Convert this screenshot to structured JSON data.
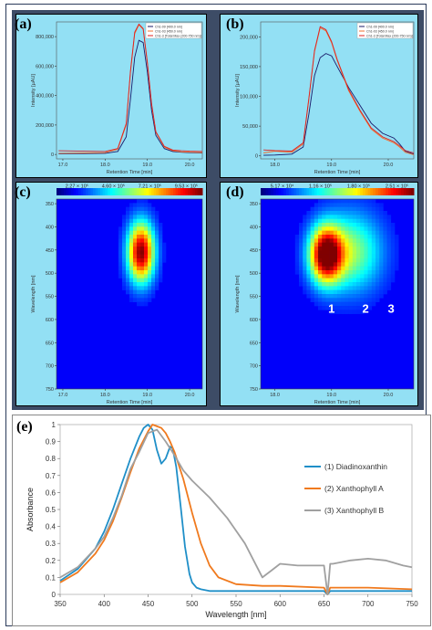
{
  "panels": {
    "a": {
      "label": "(a)",
      "ylabel": "Intensity [µAU]",
      "xlabel": "Retention Time [min]",
      "yticks": [
        "0",
        "200,000",
        "400,000",
        "600,000",
        "800,000"
      ],
      "xticks": [
        "17.0",
        "18.0",
        "19.0",
        "20.0"
      ],
      "legend": [
        "Ch1-09 [400.0 nm]",
        "Ch1-03 [450.0 nm]",
        "Ch1-3 [Total Max (200-750 nm)]"
      ]
    },
    "b": {
      "label": "(b)",
      "ylabel": "Intensity [µAU]",
      "xlabel": "Retention Time [min]",
      "yticks": [
        "0",
        "50,000",
        "100,000",
        "150,000",
        "200,000"
      ],
      "xticks": [
        "18.0",
        "19.0",
        "20.0"
      ],
      "legend": [
        "Ch1-09 [400.0 nm]",
        "Ch1-03 [450.0 nm]",
        "Ch1-3 [Total Max (200-750 nm)]"
      ]
    },
    "c": {
      "label": "(c)",
      "ylabel": "Wavelength [nm]",
      "xlabel": "Retention Time [min]",
      "scale": [
        "2.27 × 10⁵",
        "4.60 × 10⁵",
        "7.21 × 10⁵",
        "9.53 × 10⁵"
      ],
      "yticks": [
        "350",
        "400",
        "450",
        "500",
        "550",
        "600",
        "650",
        "700",
        "750"
      ],
      "xticks": [
        "17.0",
        "18.0",
        "19.0",
        "20.0"
      ]
    },
    "d": {
      "label": "(d)",
      "ylabel": "Wavelength [nm]",
      "xlabel": "Retention Time [min]",
      "scale": [
        "5.17 × 10⁴",
        "1.16 × 10⁵",
        "1.80 × 10⁵",
        "2.51 × 10⁵"
      ],
      "yticks": [
        "350",
        "400",
        "450",
        "500",
        "550",
        "600",
        "650",
        "700",
        "750"
      ],
      "xticks": [
        "18.0",
        "19.0",
        "20.0"
      ],
      "peak_labels": [
        "1",
        "2",
        "3"
      ]
    }
  },
  "colors": {
    "diadinoxanthin": "#1f8fc8",
    "xanthophyll_a": "#f07a1e",
    "xanthophyll_b": "#a0a0a0",
    "hplc_black": "#1a1a6a",
    "hplc_orange": "#f07030",
    "hplc_red": "#e02020",
    "panel_bg": "#93e0f4"
  },
  "chart_data": [
    {
      "panel": "a",
      "type": "line",
      "xlabel": "Retention Time [min]",
      "ylabel": "Intensity [µAU]",
      "xlim": [
        16.85,
        20.3
      ],
      "ylim": [
        -30000,
        900000
      ],
      "series": [
        {
          "name": "Ch1-09 [400.0 nm]",
          "x": [
            16.9,
            17.5,
            18.0,
            18.3,
            18.5,
            18.6,
            18.7,
            18.8,
            18.9,
            19.0,
            19.1,
            19.2,
            19.4,
            19.6,
            19.8,
            20.0,
            20.3
          ],
          "values": [
            5000,
            6000,
            8000,
            20000,
            120000,
            380000,
            660000,
            775000,
            760000,
            560000,
            300000,
            130000,
            40000,
            20000,
            15000,
            12000,
            10000
          ]
        },
        {
          "name": "Ch1-03 [450.0 nm]",
          "x": [
            16.9,
            17.5,
            18.0,
            18.3,
            18.5,
            18.6,
            18.7,
            18.8,
            18.9,
            19.0,
            19.1,
            19.2,
            19.4,
            19.6,
            19.8,
            20.0,
            20.3
          ],
          "values": [
            8000,
            10000,
            12000,
            35000,
            200000,
            560000,
            820000,
            880000,
            850000,
            620000,
            340000,
            150000,
            50000,
            25000,
            18000,
            15000,
            12000
          ]
        },
        {
          "name": "Ch1-3 [Total Max (200-750 nm)]",
          "x": [
            16.9,
            17.5,
            18.0,
            18.3,
            18.5,
            18.6,
            18.7,
            18.8,
            18.9,
            19.0,
            19.1,
            19.2,
            19.4,
            19.6,
            19.8,
            20.0,
            20.3
          ],
          "values": [
            25000,
            22000,
            20000,
            40000,
            210000,
            570000,
            830000,
            885000,
            855000,
            625000,
            345000,
            155000,
            55000,
            30000,
            25000,
            22000,
            20000
          ]
        }
      ]
    },
    {
      "panel": "b",
      "type": "line",
      "xlabel": "Retention Time [min]",
      "ylabel": "Intensity [µAU]",
      "xlim": [
        17.75,
        20.45
      ],
      "ylim": [
        -5000,
        225000
      ],
      "series": [
        {
          "name": "Ch1-09 [400.0 nm]",
          "x": [
            17.8,
            18.0,
            18.3,
            18.5,
            18.6,
            18.7,
            18.8,
            18.9,
            19.0,
            19.1,
            19.3,
            19.5,
            19.7,
            19.9,
            20.1,
            20.2,
            20.3,
            20.45
          ],
          "values": [
            1000,
            1500,
            3000,
            15000,
            70000,
            135000,
            165000,
            172000,
            168000,
            150000,
            115000,
            85000,
            55000,
            38000,
            30000,
            20000,
            8000,
            3000
          ]
        },
        {
          "name": "Ch1-03 [450.0 nm]",
          "x": [
            17.8,
            18.0,
            18.3,
            18.5,
            18.6,
            18.7,
            18.8,
            18.9,
            19.0,
            19.1,
            19.3,
            19.5,
            19.7,
            19.9,
            20.1,
            20.2,
            20.3,
            20.45
          ],
          "values": [
            5000,
            8000,
            6000,
            20000,
            95000,
            175000,
            215000,
            210000,
            190000,
            160000,
            110000,
            75000,
            45000,
            30000,
            22000,
            15000,
            6000,
            2000
          ]
        },
        {
          "name": "Ch1-3 [Total Max (200-750 nm)]",
          "x": [
            17.8,
            18.0,
            18.3,
            18.5,
            18.6,
            18.7,
            18.8,
            18.9,
            19.0,
            19.1,
            19.3,
            19.5,
            19.7,
            19.9,
            20.1,
            20.2,
            20.3,
            20.45
          ],
          "values": [
            10000,
            9000,
            8000,
            22000,
            97000,
            177000,
            217000,
            212000,
            192000,
            162000,
            112000,
            77000,
            47000,
            32000,
            24000,
            17000,
            9000,
            5000
          ]
        }
      ]
    },
    {
      "panel": "c",
      "type": "heatmap",
      "xlabel": "Retention Time [min]",
      "ylabel": "Wavelength [nm]",
      "xlim": [
        16.85,
        20.3
      ],
      "ylim": [
        750,
        340
      ],
      "hotspots": [
        {
          "x": 18.85,
          "y": 455,
          "sx": 0.22,
          "sy": 45,
          "amp": 1.0
        }
      ]
    },
    {
      "panel": "d",
      "type": "heatmap",
      "xlabel": "Retention Time [min]",
      "ylabel": "Wavelength [nm]",
      "xlim": [
        17.75,
        20.45
      ],
      "ylim": [
        750,
        340
      ],
      "hotspots": [
        {
          "x": 18.9,
          "y": 460,
          "sx": 0.2,
          "sy": 42,
          "amp": 1.0
        },
        {
          "x": 19.35,
          "y": 455,
          "sx": 0.38,
          "sy": 60,
          "amp": 0.45
        }
      ],
      "peak_label_x": [
        19.0,
        19.6,
        20.05
      ],
      "peak_label_y": 585
    },
    {
      "panel": "e",
      "type": "line",
      "xlabel": "Wavelength [nm]",
      "ylabel": "Absorbance",
      "xlim": [
        350,
        750
      ],
      "ylim": [
        0,
        1
      ],
      "xticks": [
        350,
        400,
        450,
        500,
        550,
        600,
        650,
        700,
        750
      ],
      "yticks": [
        0,
        0.1,
        0.2,
        0.3,
        0.4,
        0.5,
        0.6,
        0.7,
        0.8,
        0.9,
        1
      ],
      "legend_position": "right",
      "series": [
        {
          "name": "(1) Diadinoxanthin",
          "x": [
            350,
            370,
            390,
            400,
            410,
            420,
            430,
            440,
            445,
            450,
            455,
            460,
            465,
            470,
            475,
            478,
            482,
            487,
            492,
            497,
            500,
            505,
            510,
            520,
            550,
            600,
            650,
            654,
            657,
            660,
            700,
            750
          ],
          "values": [
            0.08,
            0.15,
            0.27,
            0.37,
            0.5,
            0.65,
            0.8,
            0.93,
            0.98,
            1.0,
            0.97,
            0.85,
            0.77,
            0.8,
            0.87,
            0.86,
            0.75,
            0.52,
            0.28,
            0.12,
            0.07,
            0.04,
            0.03,
            0.02,
            0.02,
            0.02,
            0.02,
            0.0,
            0.02,
            0.02,
            0.02,
            0.02
          ]
        },
        {
          "name": "(2) Xanthophyll A",
          "x": [
            350,
            370,
            390,
            400,
            410,
            420,
            430,
            440,
            450,
            455,
            460,
            465,
            470,
            475,
            480,
            490,
            500,
            510,
            520,
            530,
            550,
            580,
            600,
            650,
            654,
            657,
            660,
            700,
            750
          ],
          "values": [
            0.07,
            0.13,
            0.24,
            0.32,
            0.43,
            0.57,
            0.72,
            0.86,
            0.96,
            1.0,
            0.99,
            0.98,
            0.95,
            0.9,
            0.84,
            0.68,
            0.48,
            0.3,
            0.17,
            0.1,
            0.06,
            0.05,
            0.05,
            0.04,
            0.0,
            0.04,
            0.04,
            0.04,
            0.03
          ]
        },
        {
          "name": "(3) Xanthophyll B",
          "x": [
            350,
            370,
            390,
            400,
            410,
            420,
            430,
            440,
            450,
            460,
            470,
            480,
            490,
            500,
            520,
            540,
            560,
            580,
            590,
            600,
            620,
            640,
            650,
            654,
            657,
            660,
            680,
            700,
            720,
            740,
            750
          ],
          "values": [
            0.1,
            0.16,
            0.27,
            0.34,
            0.45,
            0.58,
            0.74,
            0.84,
            0.95,
            0.97,
            0.9,
            0.82,
            0.73,
            0.67,
            0.57,
            0.45,
            0.3,
            0.1,
            0.14,
            0.18,
            0.17,
            0.17,
            0.17,
            0.0,
            0.18,
            0.18,
            0.2,
            0.21,
            0.2,
            0.17,
            0.16
          ]
        }
      ]
    }
  ]
}
